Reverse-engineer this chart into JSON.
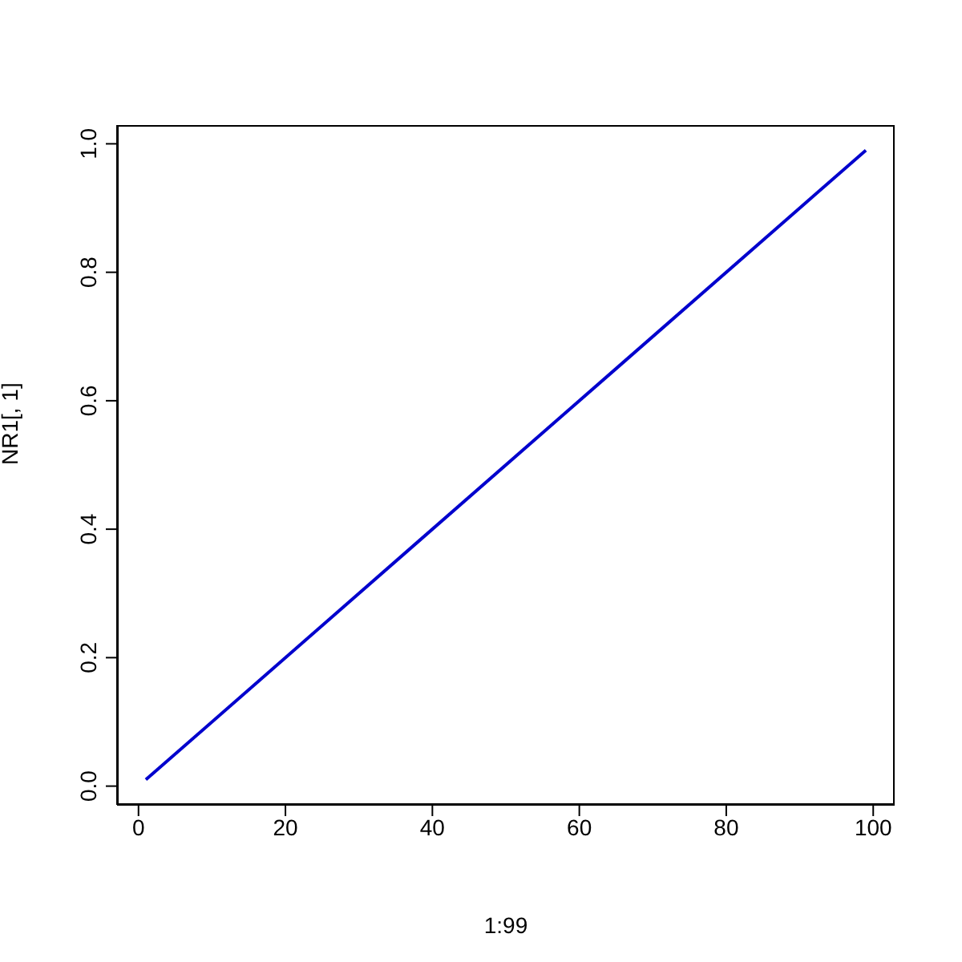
{
  "chart_data": {
    "type": "line",
    "xlabel": "1:99",
    "ylabel": "NR1[, 1]",
    "x": [
      1,
      99
    ],
    "series": [
      {
        "color": "#0000cd",
        "values": [
          0.01,
          0.99
        ]
      }
    ],
    "xlim": [
      -2.92,
      102.92
    ],
    "xticks": [
      0,
      20,
      40,
      60,
      80,
      100
    ],
    "ylim": [
      -0.0292,
      1.0292
    ],
    "yticks": [
      {
        "value": 0,
        "label": "0.0"
      },
      0.2,
      0.4,
      0.6,
      0.8,
      {
        "value": 1,
        "label": "1.0"
      }
    ],
    "grid": false,
    "marker": "none",
    "line_style": "solid"
  }
}
